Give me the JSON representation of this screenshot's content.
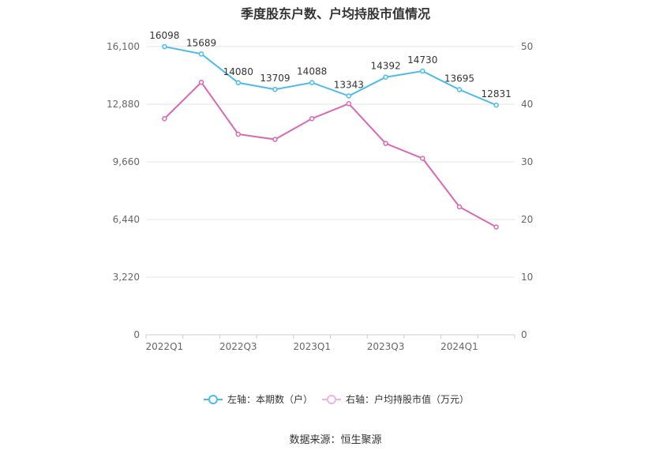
{
  "title": "季度股东户数、户均持股市值情况",
  "source": "数据来源：恒生聚源",
  "colors": {
    "left_series": "#4dbbea",
    "right_series": "#d868b4",
    "grid": "#e6e6e6",
    "axis_text": "#666666",
    "label_text": "#333333"
  },
  "chart_data": {
    "type": "line",
    "x": [
      "2022Q1",
      "2022Q2",
      "2022Q3",
      "2022Q4",
      "2023Q1",
      "2023Q2",
      "2023Q3",
      "2023Q4",
      "2024Q1",
      "2024Q2"
    ],
    "x_tick_labels": [
      "2022Q1",
      "",
      "2022Q3",
      "",
      "2023Q1",
      "",
      "2023Q3",
      "",
      "2024Q1",
      ""
    ],
    "left_axis": {
      "ticks": [
        "0",
        "3,220",
        "6,440",
        "9,660",
        "12,880",
        "16,100"
      ],
      "range": [
        0,
        16100
      ]
    },
    "right_axis": {
      "ticks": [
        "0",
        "10",
        "20",
        "30",
        "40",
        "50"
      ],
      "range": [
        0,
        50
      ]
    },
    "series": [
      {
        "name": "左轴：本期数（户）",
        "axis": "left",
        "values": [
          16098,
          15689,
          14080,
          13709,
          14088,
          13343,
          14392,
          14730,
          13695,
          12831
        ],
        "labels": [
          "16098",
          "15689",
          "14080",
          "13709",
          "14088",
          "13343",
          "14392",
          "14730",
          "13695",
          "12831"
        ]
      },
      {
        "name": "右轴：户均持股市值（万元）",
        "axis": "right",
        "values": [
          37.5,
          43.8,
          34.8,
          33.9,
          37.5,
          40.1,
          33.2,
          30.6,
          22.2,
          18.7
        ]
      }
    ],
    "grid": true,
    "legend_position": "bottom"
  }
}
